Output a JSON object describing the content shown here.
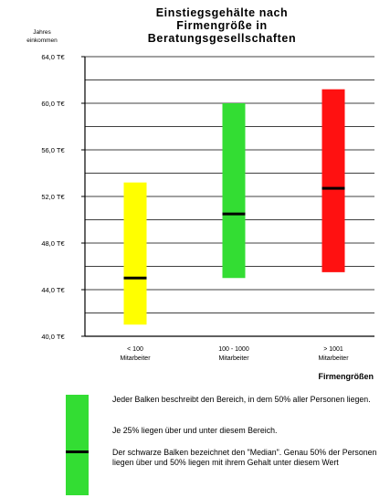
{
  "chart_data": {
    "type": "range-bar",
    "title_lines": [
      "Einstiegsgehälte nach",
      "Firmengröße in",
      "Beratungsgesellschaften"
    ],
    "ylabel_lines": [
      "Jahres",
      "einkommen"
    ],
    "xlabel": "Firmengrößen",
    "ylim": [
      40,
      64
    ],
    "ytick_values": [
      40,
      44,
      48,
      52,
      56,
      60,
      64
    ],
    "ytick_labels": [
      "40,0 T€",
      "44,0 T€",
      "48,0 T€",
      "52,0 T€",
      "56,0 T€",
      "60,0 T€",
      "64,0 T€"
    ],
    "gridlines": [
      42,
      44,
      46,
      48,
      50,
      52,
      54,
      56,
      58,
      60,
      62,
      64
    ],
    "categories": [
      {
        "lines": [
          "< 100",
          "Mitarbeiter"
        ],
        "low": 41.0,
        "high": 53.2,
        "median": 45.0,
        "color": "#ffff00"
      },
      {
        "lines": [
          "100 - 1000",
          "Mitarbeiter"
        ],
        "low": 45.0,
        "high": 60.0,
        "median": 50.5,
        "color": "#33dd33"
      },
      {
        "lines": [
          "> 1001",
          "Mitarbeiter"
        ],
        "low": 45.5,
        "high": 61.2,
        "median": 52.7,
        "color": "#ff1111"
      }
    ]
  },
  "legend": {
    "swatch_color": "#33dd33",
    "median_color": "#000000",
    "text1": "Jeder Balken beschreibt den Bereich, in dem 50% aller Personen liegen.",
    "text2": "Je 25% liegen über und unter diesem Bereich.",
    "text3": "Der schwarze Balken bezeichnet den \"Median\". Genau 50% der Personen liegen über und 50% liegen mit ihrem Gehalt unter diesem Wert"
  }
}
